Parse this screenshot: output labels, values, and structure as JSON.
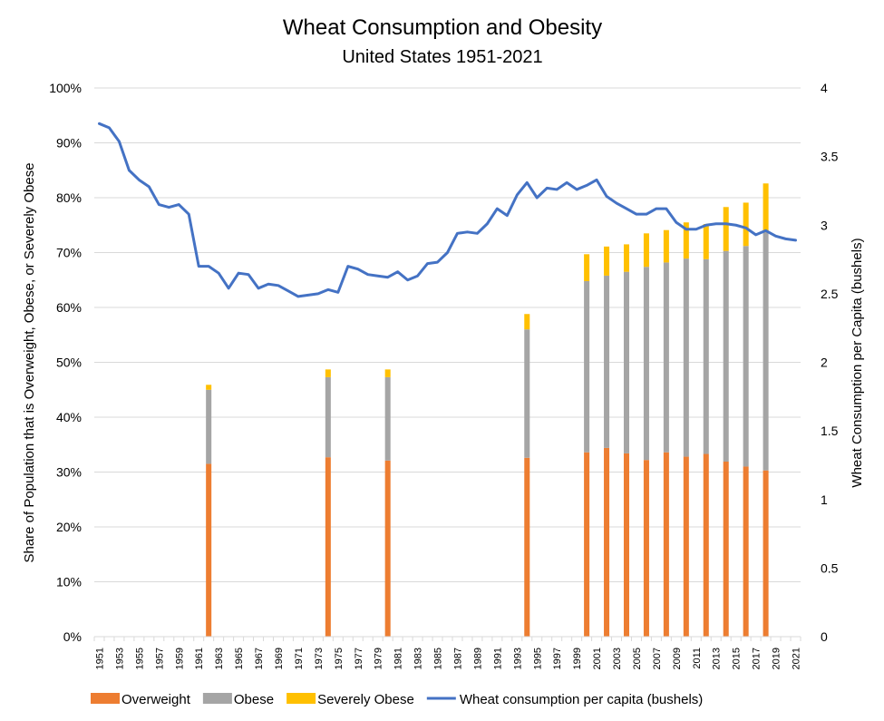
{
  "chart_data": {
    "type": "bar+line",
    "title": "Wheat Consumption and Obesity",
    "subtitle": "United States 1951-2021",
    "ylabel_left": "Share of Population that is Overweight, Obese, or Severely Obese",
    "ylabel_right": "Wheat Consumption per Capita (bushels)",
    "ylim_left": [
      0,
      100
    ],
    "ylim_right": [
      0,
      4
    ],
    "yticks_left": [
      "0%",
      "10%",
      "20%",
      "30%",
      "40%",
      "50%",
      "60%",
      "70%",
      "80%",
      "90%",
      "100%"
    ],
    "yticks_right": [
      "0",
      "0.5",
      "1",
      "1.5",
      "2",
      "2.5",
      "3",
      "3.5",
      "4"
    ],
    "x_years_range": [
      1951,
      2021
    ],
    "xticks": [
      "1951",
      "1953",
      "1955",
      "1957",
      "1959",
      "1961",
      "1963",
      "1965",
      "1967",
      "1969",
      "1971",
      "1973",
      "1975",
      "1977",
      "1979",
      "1981",
      "1983",
      "1985",
      "1987",
      "1989",
      "1991",
      "1993",
      "1995",
      "1997",
      "1999",
      "2001",
      "2003",
      "2005",
      "2007",
      "2009",
      "2011",
      "2013",
      "2015",
      "2017",
      "2019",
      "2021"
    ],
    "grid": true,
    "legend_position": "bottom",
    "bar_years": [
      1962,
      1974,
      1980,
      1994,
      2000,
      2002,
      2004,
      2006,
      2008,
      2010,
      2012,
      2014,
      2016,
      2018
    ],
    "bar_series": [
      {
        "name": "Overweight",
        "color": "#ED7D31",
        "values": [
          31.5,
          32.7,
          32.1,
          32.6,
          33.6,
          34.4,
          33.4,
          32.2,
          33.6,
          32.8,
          33.3,
          31.9,
          31.0,
          30.3
        ]
      },
      {
        "name": "Obese",
        "color": "#A5A5A5",
        "values": [
          13.5,
          14.6,
          15.2,
          23.4,
          31.2,
          31.4,
          33.1,
          35.2,
          34.6,
          36.1,
          35.5,
          38.4,
          40.2,
          43.4
        ]
      },
      {
        "name": "Severely Obese",
        "color": "#FFC000",
        "values": [
          0.9,
          1.4,
          1.4,
          2.8,
          4.9,
          5.3,
          5.0,
          6.1,
          5.9,
          6.6,
          6.4,
          8.0,
          7.9,
          8.9
        ]
      }
    ],
    "line_series": {
      "name": "Wheat consumption per capita (bushels)",
      "color": "#4472C4",
      "years": [
        1951,
        1952,
        1953,
        1954,
        1955,
        1956,
        1957,
        1958,
        1959,
        1960,
        1961,
        1962,
        1963,
        1964,
        1965,
        1966,
        1967,
        1968,
        1969,
        1970,
        1971,
        1972,
        1973,
        1974,
        1975,
        1976,
        1977,
        1978,
        1979,
        1980,
        1981,
        1982,
        1983,
        1984,
        1985,
        1986,
        1987,
        1988,
        1989,
        1990,
        1991,
        1992,
        1993,
        1994,
        1995,
        1996,
        1997,
        1998,
        1999,
        2000,
        2001,
        2002,
        2003,
        2004,
        2005,
        2006,
        2007,
        2008,
        2009,
        2010,
        2011,
        2012,
        2013,
        2014,
        2015,
        2016,
        2017,
        2018,
        2019,
        2020,
        2021
      ],
      "values": [
        3.74,
        3.71,
        3.61,
        3.4,
        3.33,
        3.28,
        3.15,
        3.13,
        3.15,
        3.08,
        2.7,
        2.7,
        2.65,
        2.54,
        2.65,
        2.64,
        2.54,
        2.57,
        2.56,
        2.52,
        2.48,
        2.49,
        2.5,
        2.53,
        2.51,
        2.7,
        2.68,
        2.64,
        2.63,
        2.62,
        2.66,
        2.6,
        2.63,
        2.72,
        2.73,
        2.8,
        2.94,
        2.95,
        2.94,
        3.01,
        3.12,
        3.07,
        3.22,
        3.31,
        3.2,
        3.27,
        3.26,
        3.31,
        3.26,
        3.29,
        3.33,
        3.21,
        3.16,
        3.12,
        3.08,
        3.08,
        3.12,
        3.12,
        3.02,
        2.97,
        2.97,
        3.0,
        3.01,
        3.01,
        3.0,
        2.98,
        2.93,
        2.96,
        2.92,
        2.9,
        2.89
      ]
    }
  }
}
